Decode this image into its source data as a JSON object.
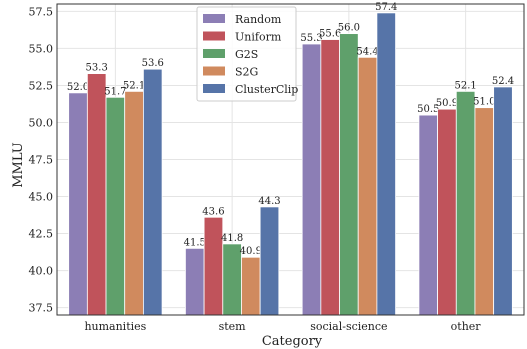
{
  "chart_data": {
    "type": "bar",
    "xlabel": "Category",
    "ylabel": "MMLU",
    "categories": [
      "humanities",
      "stem",
      "social-science",
      "other"
    ],
    "ylim": [
      37,
      58
    ],
    "yticks": [
      "37.5",
      "40.0",
      "42.5",
      "45.0",
      "47.5",
      "50.0",
      "52.5",
      "55.0",
      "57.5"
    ],
    "grid": true,
    "legend_position": "top-center",
    "series": [
      {
        "name": "Random",
        "color": "#8c7eb5",
        "values": [
          52.0,
          41.5,
          55.3,
          50.5
        ],
        "labels": [
          "52.0",
          "41.5",
          "55.3",
          "50.5"
        ]
      },
      {
        "name": "Uniform",
        "color": "#c0535b",
        "values": [
          53.3,
          43.6,
          55.6,
          50.9
        ],
        "labels": [
          "53.3",
          "43.6",
          "55.6",
          "50.9"
        ]
      },
      {
        "name": "G2S",
        "color": "#5fa06b",
        "values": [
          51.7,
          41.8,
          56.0,
          52.1
        ],
        "labels": [
          "51.7",
          "41.8",
          "56.0",
          "52.1"
        ]
      },
      {
        "name": "S2G",
        "color": "#d08a5e",
        "values": [
          52.1,
          40.9,
          54.4,
          51.0
        ],
        "labels": [
          "52.1",
          "40.9",
          "54.4",
          "51.0"
        ]
      },
      {
        "name": "ClusterClip",
        "color": "#5674a8",
        "values": [
          53.6,
          44.3,
          57.4,
          52.4
        ],
        "labels": [
          "53.6",
          "44.3",
          "57.4",
          "52.4"
        ]
      }
    ]
  }
}
